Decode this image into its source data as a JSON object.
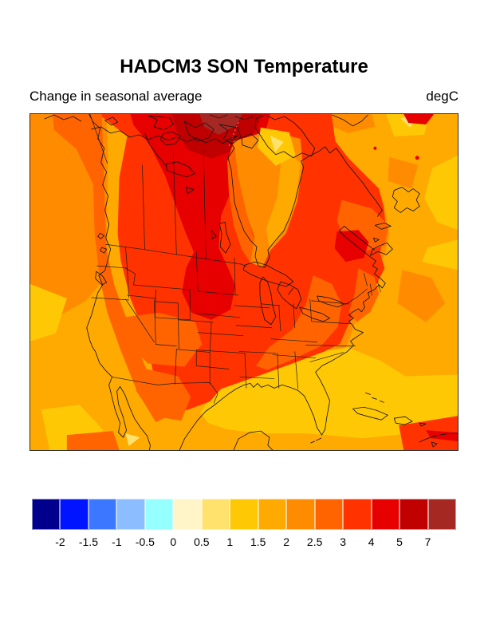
{
  "header": {
    "title": "HADCM3 SON Temperature",
    "subtitle_left": "Change in seasonal average",
    "units_label": "degC"
  },
  "colorbar": {
    "levels": [
      "-2",
      "-1.5",
      "-1",
      "-0.5",
      "0",
      "0.5",
      "1",
      "1.5",
      "2",
      "2.5",
      "3",
      "4",
      "5",
      "7"
    ],
    "colors": [
      "#00008C",
      "#0014FF",
      "#3C78FF",
      "#8CBEFF",
      "#96FFFF",
      "#FFF5C8",
      "#FFE16E",
      "#FFC805",
      "#FFAA00",
      "#FF8C00",
      "#FF6400",
      "#FF3200",
      "#E60000",
      "#C00000",
      "#A52823"
    ]
  },
  "chart_data": {
    "type": "heatmap",
    "title": "HADCM3 SON Temperature",
    "subtitle": "Change in seasonal average",
    "units": "degC",
    "legend_position": "bottom",
    "projection_area": "North America (Pacific to western Atlantic, Mexico/Caribbean to Canadian Arctic)",
    "colorbar_boundaries": [
      -2,
      -1.5,
      -1,
      -0.5,
      0,
      0.5,
      1,
      1.5,
      2,
      2.5,
      3,
      4,
      5,
      7
    ],
    "colorbar_colors": [
      "#00008C",
      "#0014FF",
      "#3C78FF",
      "#8CBEFF",
      "#96FFFF",
      "#FFF5C8",
      "#FFE16E",
      "#FFC805",
      "#FFAA00",
      "#FF8C00",
      "#FF6400",
      "#FF3200",
      "#E60000",
      "#C00000",
      "#A52823"
    ],
    "region_values": [
      {
        "region": "Canadian Arctic islands core (top center)",
        "value_degC": "> 7"
      },
      {
        "region": "Arctic archipelago around core",
        "value_degC": "5 to 7"
      },
      {
        "region": "Central Canada through Manitoba/Saskatchewan down to the Dakotas; patch near Maine/New Brunswick",
        "value_degC": "4 to 5"
      },
      {
        "region": "Most of the continental interior: western & midwestern US, Texas, Quebec/Labrador, Yukon",
        "value_degC": "3 to 4"
      },
      {
        "region": "Southwest US patch, Appalachian/mid-Atlantic band, Pacific coastal strip, Maritimes, NE Mexico",
        "value_degC": "2.5 to 3"
      },
      {
        "region": "Near-coastal Pacific (NE), western Hudson Bay, east-coast shelf waters",
        "value_degC": "2 to 2.5"
      },
      {
        "region": "Open Atlantic and southern Pacific waters, eastern Hudson Bay",
        "value_degC": "1.5 to 2"
      },
      {
        "region": "Gulf of Mexico / SE Atlantic waters and scattered ocean patches",
        "value_degC": "1 to 1.5"
      },
      {
        "region": "Small spots (Foxe Basin, off Baja tip, far NE corner)",
        "value_degC": "0.5 to 1"
      }
    ]
  }
}
